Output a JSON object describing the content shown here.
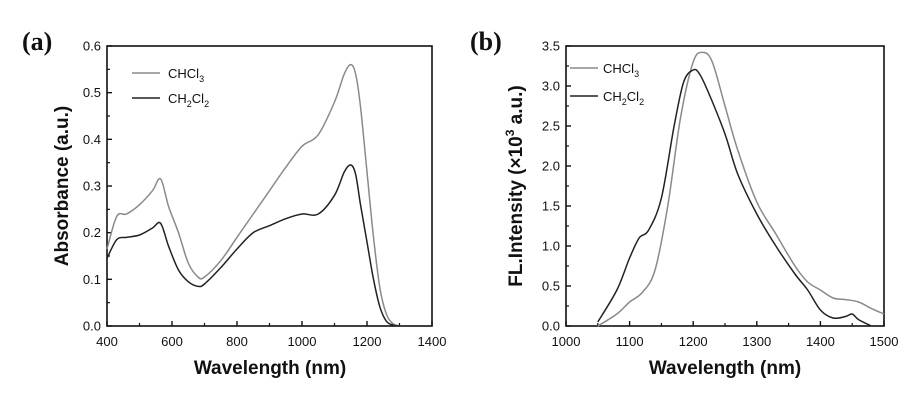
{
  "chart_data": [
    {
      "type": "line",
      "panel_label": "(a)",
      "xlabel": "Wavelength (nm)",
      "ylabel": "Absorbance (a.u.)",
      "xlim": [
        400,
        1400
      ],
      "ylim": [
        0.0,
        0.6
      ],
      "x_ticks": [
        400,
        600,
        800,
        1000,
        1200,
        1400
      ],
      "x_tick_labels": [
        "400",
        "600",
        "800",
        "1000",
        "1200",
        "1400"
      ],
      "y_ticks": [
        0.0,
        0.1,
        0.2,
        0.3,
        0.4,
        0.5,
        0.6
      ],
      "y_tick_labels": [
        "0.0",
        "0.1",
        "0.2",
        "0.3",
        "0.4",
        "0.5",
        "0.6"
      ],
      "legend_position": "top-left",
      "series": [
        {
          "name": "CHCl3",
          "legend_main": "CHCl",
          "legend_sub": "3",
          "legend_tail": "",
          "color": "#8a8a8a",
          "x": [
            400,
            430,
            460,
            500,
            540,
            565,
            590,
            620,
            650,
            680,
            700,
            750,
            800,
            850,
            900,
            950,
            1000,
            1050,
            1100,
            1130,
            1150,
            1165,
            1180,
            1200,
            1220,
            1240,
            1260,
            1280,
            1300
          ],
          "y": [
            0.165,
            0.235,
            0.24,
            0.26,
            0.29,
            0.315,
            0.255,
            0.2,
            0.135,
            0.105,
            0.105,
            0.14,
            0.19,
            0.24,
            0.29,
            0.34,
            0.385,
            0.41,
            0.48,
            0.54,
            0.56,
            0.54,
            0.47,
            0.33,
            0.19,
            0.08,
            0.025,
            0.005,
            0.0
          ]
        },
        {
          "name": "CH2Cl2",
          "legend_main": "CH",
          "legend_sub": "2",
          "legend_tail": "Cl",
          "legend_sub2": "2",
          "color": "#222222",
          "x": [
            400,
            430,
            460,
            500,
            540,
            565,
            590,
            620,
            650,
            680,
            700,
            750,
            800,
            850,
            900,
            950,
            1000,
            1050,
            1100,
            1130,
            1150,
            1165,
            1180,
            1200,
            1220,
            1240,
            1260,
            1280,
            1300
          ],
          "y": [
            0.145,
            0.185,
            0.19,
            0.195,
            0.21,
            0.22,
            0.17,
            0.12,
            0.095,
            0.085,
            0.09,
            0.125,
            0.165,
            0.2,
            0.215,
            0.23,
            0.24,
            0.24,
            0.28,
            0.33,
            0.345,
            0.325,
            0.26,
            0.18,
            0.1,
            0.04,
            0.01,
            0.002,
            0.0
          ]
        }
      ]
    },
    {
      "type": "line",
      "panel_label": "(b)",
      "xlabel": "Wavelength (nm)",
      "ylabel_main": "FL.Intensity (×10",
      "ylabel_sup": "3",
      "ylabel_tail": " a.u.)",
      "xlim": [
        1000,
        1500
      ],
      "ylim": [
        0.0,
        3.5
      ],
      "x_ticks": [
        1000,
        1100,
        1200,
        1300,
        1400,
        1500
      ],
      "x_tick_labels": [
        "1000",
        "1100",
        "1200",
        "1300",
        "1400",
        "1500"
      ],
      "y_ticks": [
        0.0,
        0.5,
        1.0,
        1.5,
        2.0,
        2.5,
        3.0,
        3.5
      ],
      "y_tick_labels": [
        "0.0",
        "0.5",
        "1.0",
        "1.5",
        "2.0",
        "2.5",
        "3.0",
        "3.5"
      ],
      "legend_position": "top-left",
      "series": [
        {
          "name": "CHCl3",
          "legend_main": "CHCl",
          "legend_sub": "3",
          "legend_tail": "",
          "color": "#8a8a8a",
          "x": [
            1050,
            1080,
            1100,
            1120,
            1140,
            1160,
            1180,
            1200,
            1215,
            1230,
            1250,
            1270,
            1300,
            1330,
            1360,
            1380,
            1400,
            1420,
            1440,
            1460,
            1480,
            1500
          ],
          "y": [
            0.0,
            0.15,
            0.3,
            0.42,
            0.7,
            1.5,
            2.6,
            3.3,
            3.42,
            3.3,
            2.75,
            2.2,
            1.55,
            1.15,
            0.75,
            0.55,
            0.45,
            0.35,
            0.33,
            0.3,
            0.22,
            0.15
          ]
        },
        {
          "name": "CH2Cl2",
          "legend_main": "CH",
          "legend_sub": "2",
          "legend_tail": "Cl",
          "legend_sub2": "2",
          "color": "#222222",
          "x": [
            1050,
            1080,
            1100,
            1115,
            1130,
            1150,
            1170,
            1185,
            1200,
            1210,
            1225,
            1250,
            1270,
            1300,
            1330,
            1360,
            1380,
            1400,
            1420,
            1440,
            1450,
            1460,
            1480
          ],
          "y": [
            0.05,
            0.45,
            0.85,
            1.1,
            1.2,
            1.6,
            2.5,
            3.05,
            3.2,
            3.15,
            2.9,
            2.4,
            1.9,
            1.4,
            1.0,
            0.65,
            0.45,
            0.2,
            0.1,
            0.12,
            0.15,
            0.08,
            0.0
          ]
        }
      ]
    }
  ]
}
